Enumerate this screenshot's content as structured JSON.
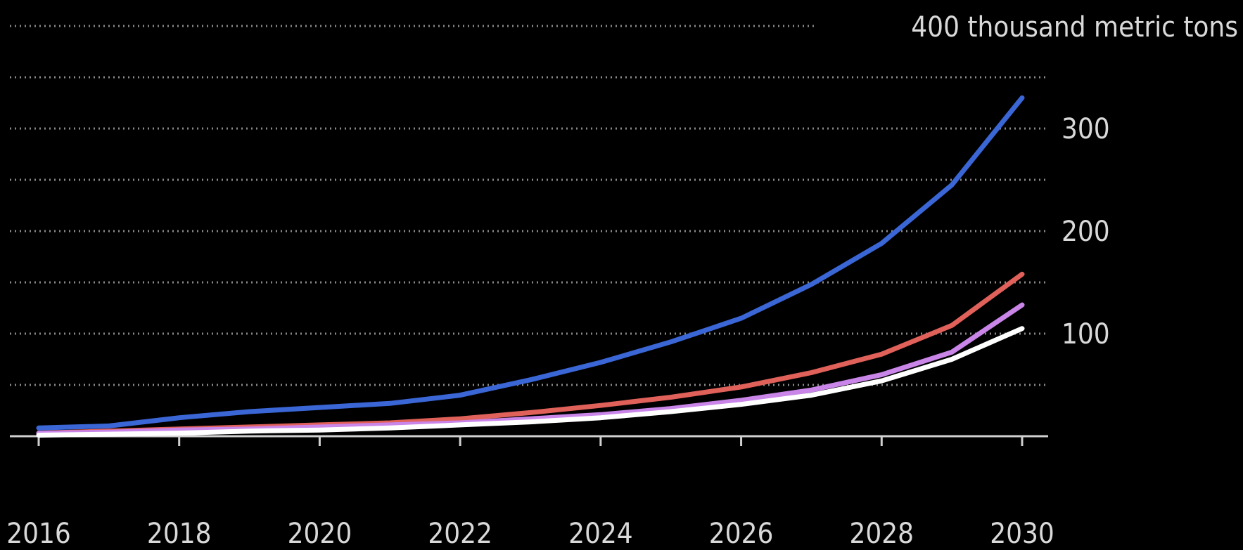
{
  "chart_data": {
    "type": "line",
    "title": "",
    "xlabel": "",
    "ylabel": "",
    "unit_label": "400 thousand metric tons",
    "x": [
      2016,
      2017,
      2018,
      2019,
      2020,
      2021,
      2022,
      2023,
      2024,
      2025,
      2026,
      2027,
      2028,
      2029,
      2030
    ],
    "x_tick_labels": [
      "2016",
      "2018",
      "2020",
      "2022",
      "2024",
      "2026",
      "2028",
      "2030"
    ],
    "x_ticks": [
      2016,
      2018,
      2020,
      2022,
      2024,
      2026,
      2028,
      2030
    ],
    "y_tick_labels": [
      "300",
      "200",
      "100"
    ],
    "y_ticks": [
      300,
      200,
      100
    ],
    "gridlines": [
      50,
      100,
      150,
      200,
      250,
      300,
      350,
      400
    ],
    "ylim": [
      0,
      400
    ],
    "xlim": [
      2016,
      2030
    ],
    "grid": true,
    "legend": "none",
    "series": [
      {
        "color": "#3a66d6",
        "values": [
          8,
          10,
          18,
          24,
          28,
          32,
          40,
          55,
          72,
          92,
          115,
          148,
          188,
          245,
          330
        ]
      },
      {
        "color": "#e0605a",
        "values": [
          3,
          5,
          7,
          9,
          11,
          13,
          17,
          23,
          30,
          38,
          48,
          62,
          80,
          108,
          158
        ]
      },
      {
        "color": "#c985e8",
        "values": [
          3,
          4,
          6,
          7,
          9,
          11,
          13,
          17,
          21,
          27,
          35,
          45,
          60,
          82,
          128
        ]
      },
      {
        "color": "#ffffff",
        "values": [
          1,
          2,
          3,
          5,
          6,
          8,
          11,
          14,
          18,
          24,
          31,
          40,
          54,
          75,
          105
        ]
      }
    ]
  }
}
